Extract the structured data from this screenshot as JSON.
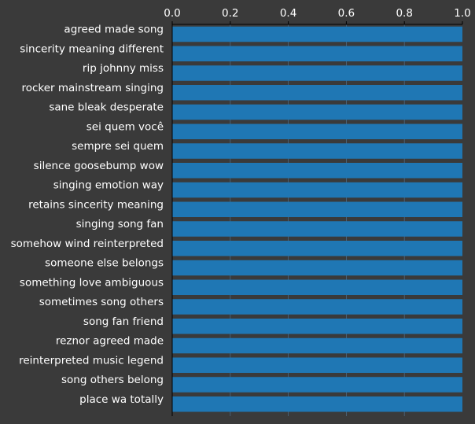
{
  "chart_data": {
    "type": "bar",
    "orientation": "horizontal",
    "categories": [
      "agreed made song",
      "sincerity meaning different",
      "rip johnny miss",
      "rocker mainstream singing",
      "sane bleak desperate",
      "sei quem você",
      "sempre sei quem",
      "silence goosebump wow",
      "singing emotion way",
      "retains sincerity meaning",
      "singing song fan",
      "somehow wind reinterpreted",
      "someone else belongs",
      "something love ambiguous",
      "sometimes song others",
      "song fan friend",
      "reznor agreed made",
      "reinterpreted music legend",
      "song others belong",
      "place wa totally"
    ],
    "values": [
      1.0,
      1.0,
      1.0,
      1.0,
      1.0,
      1.0,
      1.0,
      1.0,
      1.0,
      1.0,
      1.0,
      1.0,
      1.0,
      1.0,
      1.0,
      1.0,
      1.0,
      1.0,
      1.0,
      1.0
    ],
    "x_ticks": [
      "0.0",
      "0.2",
      "0.4",
      "0.6",
      "0.8",
      "1.0"
    ],
    "xlim": [
      0,
      1.0
    ],
    "x_axis_position": "top",
    "grid": true,
    "colors": {
      "background": "#3a3a3a",
      "bar": "#1f77b4",
      "text": "#ffffff",
      "axis": "#000000",
      "grid": "#5a8fbf"
    }
  }
}
